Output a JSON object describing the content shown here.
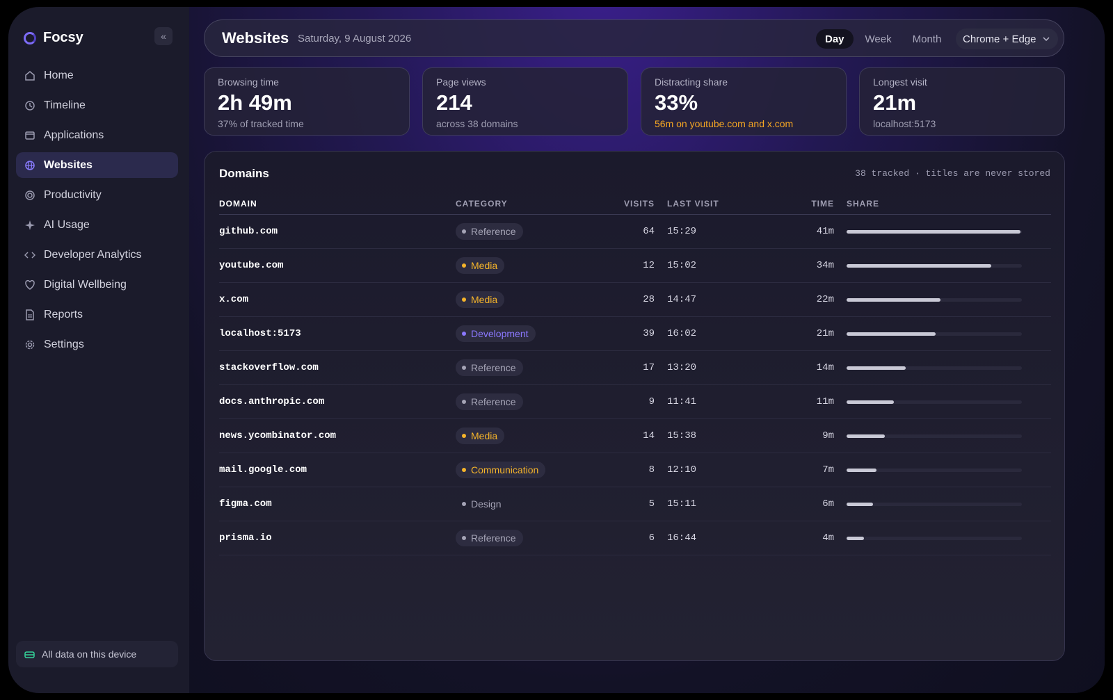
{
  "app": {
    "name": "Focsy",
    "collapse_glyph": "«"
  },
  "sidebar": {
    "items": [
      {
        "label": "Home",
        "icon": "home-icon",
        "active": false
      },
      {
        "label": "Timeline",
        "icon": "history-icon",
        "active": false
      },
      {
        "label": "Applications",
        "icon": "window-icon",
        "active": false
      },
      {
        "label": "Websites",
        "icon": "globe-icon",
        "active": true
      },
      {
        "label": "Productivity",
        "icon": "target-icon",
        "active": false
      },
      {
        "label": "AI Usage",
        "icon": "sparkle-icon",
        "active": false
      },
      {
        "label": "Developer Analytics",
        "icon": "code-icon",
        "active": false
      },
      {
        "label": "Digital Wellbeing",
        "icon": "heart-icon",
        "active": false
      },
      {
        "label": "Reports",
        "icon": "document-icon",
        "active": false
      },
      {
        "label": "Settings",
        "icon": "gear-icon",
        "active": false
      }
    ],
    "device_note": "All data on this device"
  },
  "header": {
    "title": "Websites",
    "date": "Saturday, 9 August 2026",
    "ranges": [
      {
        "label": "Day",
        "active": true
      },
      {
        "label": "Week",
        "active": false
      },
      {
        "label": "Month",
        "active": false
      }
    ],
    "browser": "Chrome + Edge"
  },
  "stats": [
    {
      "label": "Browsing time",
      "value": "2h 49m",
      "sub": "37% of tracked time",
      "warn": false
    },
    {
      "label": "Page views",
      "value": "214",
      "sub": "across 38 domains",
      "warn": false
    },
    {
      "label": "Distracting share",
      "value": "33%",
      "sub": "56m on youtube.com and x.com",
      "warn": true
    },
    {
      "label": "Longest visit",
      "value": "21m",
      "sub": "localhost:5173",
      "warn": false
    }
  ],
  "domains": {
    "title": "Domains",
    "note": "38 tracked · titles are never stored",
    "columns": [
      "DOMAIN",
      "CATEGORY",
      "VISITS",
      "LAST VISIT",
      "TIME",
      "SHARE"
    ],
    "colors": {
      "Reference": "#a5a4b6",
      "Media": "#f5b42a",
      "Development": "#8b78ff",
      "Communication": "#f5b42a",
      "Design": "#a5a4b6"
    },
    "rows": [
      {
        "domain": "github.com",
        "category": "Reference",
        "visits": "64",
        "last": "15:29",
        "time": "41m",
        "share": 1.0
      },
      {
        "domain": "youtube.com",
        "category": "Media",
        "visits": "12",
        "last": "15:02",
        "time": "34m",
        "share": 0.83
      },
      {
        "domain": "x.com",
        "category": "Media",
        "visits": "28",
        "last": "14:47",
        "time": "22m",
        "share": 0.54
      },
      {
        "domain": "localhost:5173",
        "category": "Development",
        "visits": "39",
        "last": "16:02",
        "time": "21m",
        "share": 0.51
      },
      {
        "domain": "stackoverflow.com",
        "category": "Reference",
        "visits": "17",
        "last": "13:20",
        "time": "14m",
        "share": 0.34
      },
      {
        "domain": "docs.anthropic.com",
        "category": "Reference",
        "visits": "9",
        "last": "11:41",
        "time": "11m",
        "share": 0.27
      },
      {
        "domain": "news.ycombinator.com",
        "category": "Media",
        "visits": "14",
        "last": "15:38",
        "time": "9m",
        "share": 0.22
      },
      {
        "domain": "mail.google.com",
        "category": "Communication",
        "visits": "8",
        "last": "12:10",
        "time": "7m",
        "share": 0.17
      },
      {
        "domain": "figma.com",
        "category": "Design",
        "visits": "5",
        "last": "15:11",
        "time": "6m",
        "share": 0.15
      },
      {
        "domain": "prisma.io",
        "category": "Reference",
        "visits": "6",
        "last": "16:44",
        "time": "4m",
        "share": 0.1
      }
    ]
  }
}
